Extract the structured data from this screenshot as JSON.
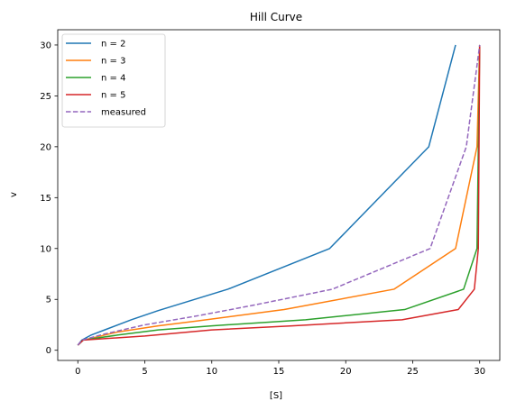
{
  "chart_data": {
    "type": "line",
    "title": "Hill Curve",
    "xlabel": "[S]",
    "ylabel": "v",
    "xlim": [
      -1.5,
      31.5
    ],
    "ylim": [
      -1,
      31.5
    ],
    "xticks": [
      0,
      5,
      10,
      15,
      20,
      25,
      30
    ],
    "yticks": [
      0,
      5,
      10,
      15,
      20,
      25,
      30
    ],
    "grid": false,
    "legend": "top-left",
    "series": [
      {
        "name": "n = 2",
        "color": "#1f77b4",
        "dash": "solid",
        "x": [
          0.0,
          0.3,
          1.0,
          2.0,
          4.0,
          6.0,
          11.2,
          18.8,
          26.2,
          28.2
        ],
        "y": [
          0.5,
          1.0,
          1.5,
          2.0,
          3.0,
          3.9,
          6.0,
          10.0,
          20.0,
          30.0
        ]
      },
      {
        "name": "n = 3",
        "color": "#ff7f0e",
        "dash": "solid",
        "x": [
          0.0,
          0.4,
          3.0,
          6.0,
          9.0,
          15.4,
          23.6,
          28.2,
          29.8,
          30.0
        ],
        "y": [
          0.5,
          1.0,
          1.8,
          2.4,
          2.9,
          4.0,
          6.0,
          10.0,
          20.0,
          30.0
        ]
      },
      {
        "name": "n = 4",
        "color": "#2ca02c",
        "dash": "solid",
        "x": [
          0.0,
          0.4,
          3.0,
          6.0,
          10.0,
          17.0,
          24.4,
          28.8,
          29.8,
          30.0
        ],
        "y": [
          0.5,
          1.0,
          1.5,
          2.0,
          2.4,
          3.0,
          4.0,
          6.0,
          10.0,
          30.0
        ]
      },
      {
        "name": "n = 5",
        "color": "#d62728",
        "dash": "solid",
        "x": [
          0.0,
          0.4,
          5.0,
          10.0,
          16.0,
          24.2,
          28.4,
          29.6,
          29.9,
          30.0
        ],
        "y": [
          0.5,
          1.0,
          1.4,
          2.0,
          2.4,
          3.0,
          4.0,
          6.0,
          10.0,
          30.0
        ]
      },
      {
        "name": "measured",
        "color": "#9467bd",
        "dash": "dashed",
        "x": [
          0.0,
          0.3,
          2.0,
          5.0,
          9.0,
          13.0,
          19.0,
          26.3,
          29.0,
          30.0
        ],
        "y": [
          0.5,
          1.0,
          1.6,
          2.5,
          3.4,
          4.4,
          6.0,
          10.0,
          20.0,
          30.0
        ]
      }
    ]
  }
}
